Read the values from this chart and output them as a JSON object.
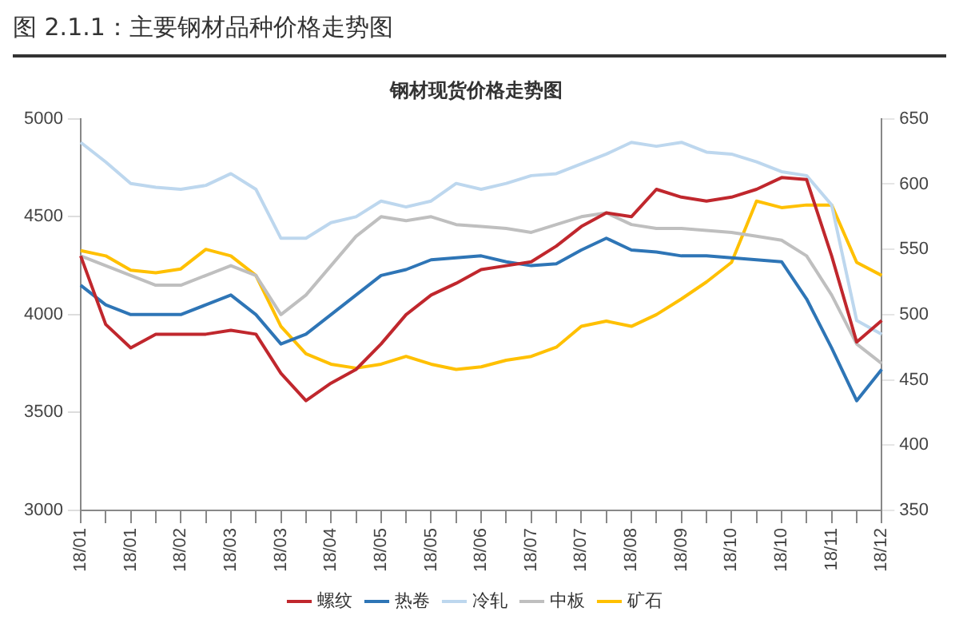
{
  "chart_data": {
    "type": "line",
    "title": "钢材现货价格走势图",
    "subtitle": "图 2.1.1：主要钢材品种价格走势图",
    "categories": [
      "18/01",
      null,
      "18/01",
      null,
      "18/02",
      null,
      "18/03",
      null,
      "18/03",
      null,
      "18/04",
      null,
      "18/05",
      null,
      "18/05",
      null,
      "18/06",
      null,
      "18/07",
      null,
      "18/07",
      null,
      "18/08",
      null,
      "18/09",
      null,
      "18/10",
      null,
      "18/10",
      null,
      "18/11",
      null,
      "18/12"
    ],
    "series": [
      {
        "name": "螺纹",
        "color": "#c0272d",
        "values": [
          4300,
          3950,
          3830,
          3900,
          3900,
          3900,
          3920,
          3900,
          3700,
          3560,
          3650,
          3720,
          3850,
          4000,
          4100,
          4160,
          4230,
          4250,
          4270,
          4350,
          4450,
          4520,
          4500,
          4640,
          4600,
          4580,
          4600,
          4640,
          4700,
          4690,
          4300,
          3860,
          3970
        ]
      },
      {
        "name": "热卷",
        "color": "#2e75b6",
        "values": [
          4150,
          4050,
          4000,
          4000,
          4000,
          4050,
          4100,
          4000,
          3850,
          3900,
          4000,
          4100,
          4200,
          4230,
          4280,
          4290,
          4300,
          4270,
          4250,
          4260,
          4330,
          4390,
          4330,
          4320,
          4300,
          4300,
          4290,
          4280,
          4270,
          4080,
          3830,
          3560,
          3720
        ]
      },
      {
        "name": "冷轧",
        "color": "#bdd7ee",
        "values": [
          4880,
          4780,
          4670,
          4650,
          4640,
          4660,
          4720,
          4640,
          4390,
          4390,
          4470,
          4500,
          4580,
          4550,
          4580,
          4670,
          4640,
          4670,
          4710,
          4720,
          4770,
          4820,
          4880,
          4860,
          4880,
          4830,
          4820,
          4780,
          4730,
          4710,
          4560,
          3970,
          3900
        ]
      },
      {
        "name": "中板",
        "color": "#bfbfbf",
        "values": [
          4300,
          4250,
          4200,
          4150,
          4150,
          4200,
          4250,
          4200,
          4000,
          4100,
          4250,
          4400,
          4500,
          4480,
          4500,
          4460,
          4450,
          4440,
          4420,
          4460,
          4500,
          4520,
          4460,
          4440,
          4440,
          4430,
          4420,
          4400,
          4380,
          4300,
          4100,
          3850,
          3750
        ]
      },
      {
        "name": "矿石",
        "color": "#ffc000",
        "axis": "y2",
        "values": [
          549,
          545,
          534,
          532,
          535,
          550,
          545,
          530,
          491,
          470,
          462,
          459,
          462,
          468,
          462,
          458,
          460,
          465,
          468,
          475,
          491,
          495,
          491,
          500,
          512,
          525,
          540,
          587,
          582,
          584,
          584,
          540,
          530
        ]
      }
    ],
    "ylim": [
      3000,
      5000
    ],
    "yticks": [
      3000,
      3500,
      4000,
      4500,
      5000
    ],
    "y2lim": [
      350,
      650
    ],
    "y2ticks": [
      350,
      400,
      450,
      500,
      550,
      600,
      650
    ],
    "legend": "bottom",
    "marker": "none",
    "line_style": "solid"
  }
}
